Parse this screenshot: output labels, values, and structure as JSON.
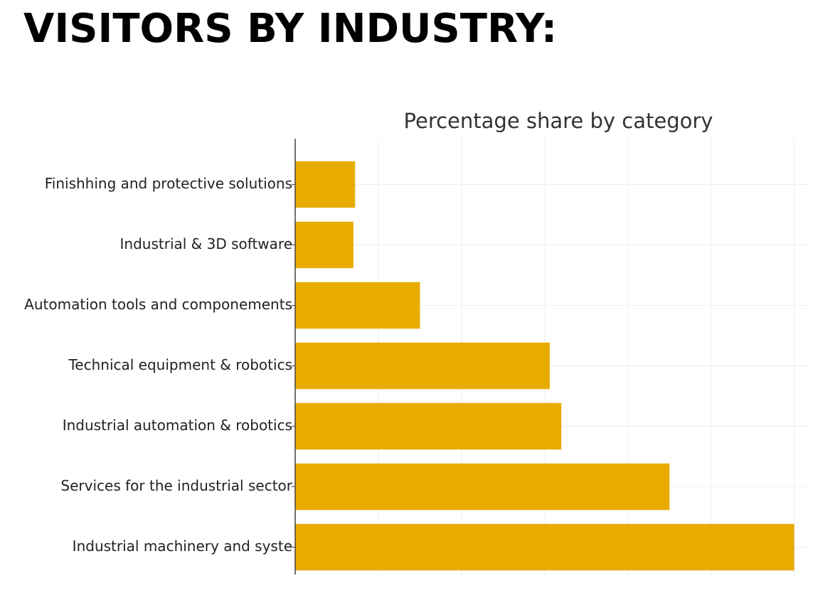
{
  "header": {
    "title": "VISITORS BY INDUSTRY:"
  },
  "chart_data": {
    "type": "bar",
    "orientation": "horizontal",
    "title": "Percentage share by category",
    "categories": [
      "Finishhing and protective solutions",
      "Industrial & 3D software",
      "Automation tools and componements",
      "Technical equipment & robotics",
      "Industrial automation & robotics",
      "Services for the industrial sector",
      "Industrial machinery and syste"
    ],
    "values": [
      3.6,
      3.5,
      7.5,
      15.3,
      16,
      22.5,
      30
    ],
    "color": "#e8ab00",
    "xlim": [
      0,
      31
    ],
    "xgrid": [
      0,
      5,
      10,
      15,
      20,
      25,
      30
    ],
    "grid": true
  }
}
